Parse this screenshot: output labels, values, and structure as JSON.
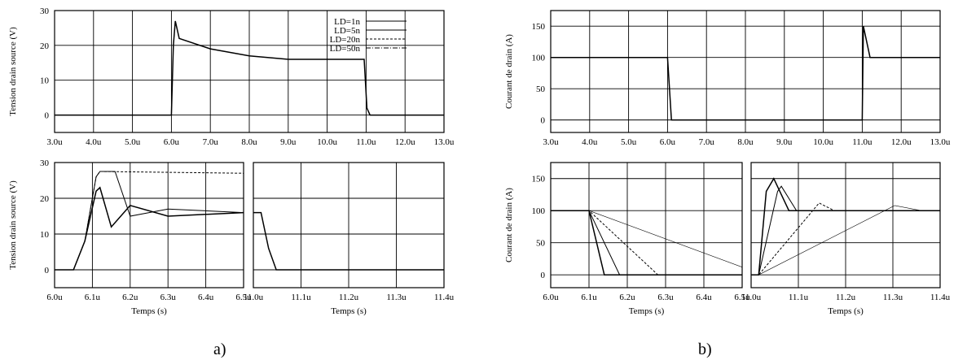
{
  "captions": {
    "a": "a)",
    "b": "b)"
  },
  "chart_data": [
    {
      "id": "a-top",
      "type": "line",
      "ylabel": "Tension drain source (V)",
      "xlabel": "",
      "xticks": [
        "3.0u",
        "4.0u",
        "5.0u",
        "6.0u",
        "7.0u",
        "8.0u",
        "9.0u",
        "10.0u",
        "11.0u",
        "12.0u",
        "13.0u"
      ],
      "yticks": [
        "0",
        "10",
        "20",
        "30"
      ],
      "xlim": [
        3.0,
        13.0
      ],
      "ylim": [
        -5,
        30
      ],
      "grid": true,
      "legend": {
        "position": "top-right",
        "entries": [
          "L<sub>D</sub>=1n",
          "L<sub>D</sub>=5n",
          "L<sub>D</sub>=20n",
          "L<sub>D</sub>=50n"
        ]
      },
      "series": [
        {
          "name": "LD=1n",
          "points": [
            [
              3.0,
              0
            ],
            [
              6.0,
              0
            ],
            [
              6.05,
              20
            ],
            [
              6.1,
              27
            ],
            [
              6.2,
              22
            ],
            [
              7.0,
              19
            ],
            [
              8.0,
              17
            ],
            [
              9.0,
              16
            ],
            [
              10.95,
              16
            ],
            [
              11.02,
              2
            ],
            [
              11.1,
              0
            ],
            [
              13.0,
              0
            ]
          ]
        }
      ]
    },
    {
      "id": "a-bl",
      "type": "line",
      "ylabel": "Tension drain source (V)",
      "xlabel": "Temps (s)",
      "xticks": [
        "6.0u",
        "6.1u",
        "6.2u",
        "6.3u",
        "6.4u",
        "6.5u"
      ],
      "yticks": [
        "0",
        "10",
        "20",
        "30"
      ],
      "xlim": [
        6.0,
        6.5
      ],
      "ylim": [
        -5,
        30
      ],
      "grid": true,
      "series": [
        {
          "name": "LD=1n",
          "points": [
            [
              6.0,
              0
            ],
            [
              6.05,
              0
            ],
            [
              6.08,
              8
            ],
            [
              6.11,
              22
            ],
            [
              6.12,
              23
            ],
            [
              6.15,
              12
            ],
            [
              6.2,
              18
            ],
            [
              6.3,
              15
            ],
            [
              6.5,
              16
            ]
          ]
        },
        {
          "name": "LD=5n",
          "points": [
            [
              6.0,
              0
            ],
            [
              6.05,
              0
            ],
            [
              6.08,
              8
            ],
            [
              6.11,
              26
            ],
            [
              6.12,
              27.5
            ],
            [
              6.16,
              27.5
            ],
            [
              6.2,
              15
            ],
            [
              6.3,
              17
            ],
            [
              6.5,
              16
            ]
          ]
        },
        {
          "name": "LD=50n",
          "points": [
            [
              6.0,
              0
            ],
            [
              6.05,
              0
            ],
            [
              6.08,
              8
            ],
            [
              6.11,
              26
            ],
            [
              6.12,
              27.5
            ],
            [
              6.5,
              27
            ]
          ]
        }
      ]
    },
    {
      "id": "a-br",
      "type": "line",
      "ylabel": "",
      "xlabel": "Temps (s)",
      "xticks": [
        "11.0u",
        "11.1u",
        "11.2u",
        "11.3u",
        "11.4u"
      ],
      "yticks": [],
      "xlim": [
        11.0,
        11.5
      ],
      "ylim": [
        -5,
        30
      ],
      "grid": true,
      "series": [
        {
          "name": "LD=1n",
          "points": [
            [
              11.0,
              16
            ],
            [
              11.02,
              16
            ],
            [
              11.04,
              6
            ],
            [
              11.06,
              0
            ],
            [
              11.5,
              0
            ]
          ]
        }
      ]
    },
    {
      "id": "b-top",
      "type": "line",
      "ylabel": "Courant de drain (A)",
      "xlabel": "",
      "xticks": [
        "3.0u",
        "4.0u",
        "5.0u",
        "6.0u",
        "7.0u",
        "8.0u",
        "9.0u",
        "10.0u",
        "11.0u",
        "12.0u",
        "13.0u"
      ],
      "yticks": [
        "0",
        "50",
        "100",
        "150"
      ],
      "xlim": [
        3.0,
        13.0
      ],
      "ylim": [
        -20,
        175
      ],
      "grid": true,
      "series": [
        {
          "name": "LD=1n",
          "points": [
            [
              3.0,
              100
            ],
            [
              6.0,
              100
            ],
            [
              6.1,
              0
            ],
            [
              11.0,
              0
            ],
            [
              11.03,
              150
            ],
            [
              11.2,
              100
            ],
            [
              13.0,
              100
            ]
          ]
        }
      ]
    },
    {
      "id": "b-bl",
      "type": "line",
      "ylabel": "Courant de drain (A)",
      "xlabel": "Temps (s)",
      "xticks": [
        "6.0u",
        "6.1u",
        "6.2u",
        "6.3u",
        "6.4u",
        "6.5u"
      ],
      "yticks": [
        "0",
        "50",
        "100",
        "150"
      ],
      "xlim": [
        6.0,
        6.5
      ],
      "ylim": [
        -20,
        175
      ],
      "grid": true,
      "series": [
        {
          "name": "LD=1n",
          "points": [
            [
              6.0,
              100
            ],
            [
              6.1,
              100
            ],
            [
              6.14,
              0
            ],
            [
              6.5,
              0
            ]
          ]
        },
        {
          "name": "LD=5n",
          "points": [
            [
              6.0,
              100
            ],
            [
              6.1,
              100
            ],
            [
              6.18,
              0
            ],
            [
              6.5,
              0
            ]
          ]
        },
        {
          "name": "LD=20n",
          "points": [
            [
              6.0,
              100
            ],
            [
              6.1,
              100
            ],
            [
              6.28,
              0
            ],
            [
              6.5,
              0
            ]
          ]
        },
        {
          "name": "LD=50n",
          "points": [
            [
              6.0,
              100
            ],
            [
              6.1,
              100
            ],
            [
              6.5,
              12
            ]
          ]
        }
      ]
    },
    {
      "id": "b-br",
      "type": "line",
      "ylabel": "",
      "xlabel": "Temps (s)",
      "xticks": [
        "11.0u",
        "11.1u",
        "11.2u",
        "11.3u",
        "11.4u"
      ],
      "yticks": [],
      "xlim": [
        11.0,
        11.5
      ],
      "ylim": [
        -20,
        175
      ],
      "grid": true,
      "series": [
        {
          "name": "LD=1n",
          "points": [
            [
              11.0,
              0
            ],
            [
              11.02,
              0
            ],
            [
              11.04,
              130
            ],
            [
              11.06,
              150
            ],
            [
              11.1,
              100
            ],
            [
              11.5,
              100
            ]
          ]
        },
        {
          "name": "LD=5n",
          "points": [
            [
              11.0,
              0
            ],
            [
              11.02,
              0
            ],
            [
              11.07,
              130
            ],
            [
              11.08,
              138
            ],
            [
              11.12,
              100
            ],
            [
              11.5,
              100
            ]
          ]
        },
        {
          "name": "LD=20n",
          "points": [
            [
              11.0,
              0
            ],
            [
              11.02,
              0
            ],
            [
              11.18,
              112
            ],
            [
              11.22,
              100
            ],
            [
              11.5,
              100
            ]
          ]
        },
        {
          "name": "LD=50n",
          "points": [
            [
              11.0,
              0
            ],
            [
              11.02,
              0
            ],
            [
              11.38,
              108
            ],
            [
              11.45,
              100
            ],
            [
              11.5,
              100
            ]
          ]
        }
      ]
    }
  ]
}
